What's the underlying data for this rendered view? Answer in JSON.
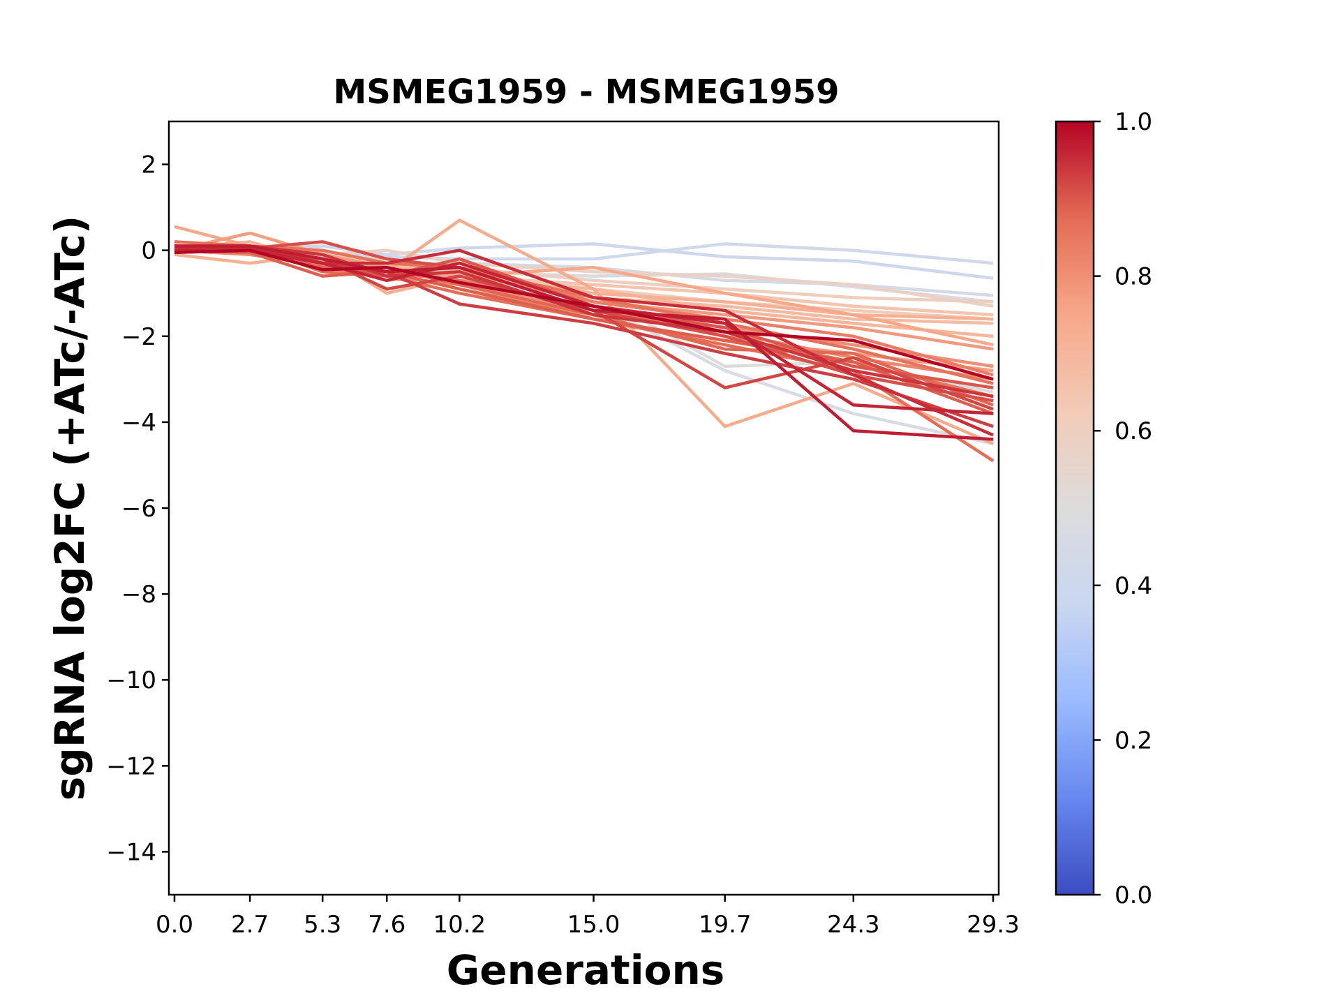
{
  "chart_data": {
    "type": "line",
    "title": "MSMEG1959 - MSMEG1959",
    "xlabel": "Generations",
    "ylabel": "sgRNA log2FC (+ATc/-ATc)",
    "x": [
      0.0,
      2.7,
      5.3,
      7.6,
      10.2,
      15.0,
      19.7,
      24.3,
      29.3
    ],
    "x_tick_labels": [
      "0.0",
      "2.7",
      "5.3",
      "7.6",
      "10.2",
      "15.0",
      "19.7",
      "24.3",
      "29.3"
    ],
    "xlim": [
      -0.2,
      29.5
    ],
    "ylim": [
      -15,
      3
    ],
    "y_ticks": [
      2,
      0,
      -2,
      -4,
      -6,
      -8,
      -10,
      -12,
      -14
    ],
    "y_tick_labels": [
      "2",
      "0",
      "−2",
      "−4",
      "−6",
      "−8",
      "−10",
      "−12",
      "−14"
    ],
    "grid": false,
    "colorbar": {
      "colormap": "coolwarm",
      "range": [
        0.0,
        1.0
      ],
      "tick_labels": [
        "0.0",
        "0.2",
        "0.4",
        "0.6",
        "0.8",
        "1.0"
      ],
      "stops": [
        "#3b4cc0",
        "#6788ee",
        "#9abbff",
        "#c9d7f0",
        "#dddcdc",
        "#f2cbb7",
        "#f7a889",
        "#e36c55",
        "#b40426"
      ]
    },
    "series": [
      {
        "color_value": 0.4,
        "values": [
          0.0,
          0.05,
          0.1,
          -0.1,
          0.05,
          0.15,
          -0.15,
          -0.25,
          -0.65
        ]
      },
      {
        "color_value": 0.42,
        "values": [
          0.0,
          0.0,
          -0.05,
          -0.15,
          -0.2,
          -0.2,
          0.15,
          0.0,
          -0.3
        ]
      },
      {
        "color_value": 0.44,
        "values": [
          0.0,
          -0.05,
          -0.15,
          -0.3,
          -0.3,
          -0.4,
          -0.7,
          -0.8,
          -1.05
        ]
      },
      {
        "color_value": 0.46,
        "values": [
          0.0,
          0.0,
          -0.2,
          -0.4,
          -0.5,
          -0.6,
          -0.55,
          -0.85,
          -1.2
        ]
      },
      {
        "color_value": 0.47,
        "values": [
          0.0,
          -0.1,
          -0.3,
          -0.45,
          -0.6,
          -1.2,
          -2.8,
          -3.8,
          -4.5
        ]
      },
      {
        "color_value": 0.5,
        "values": [
          0.0,
          0.05,
          -0.2,
          -0.3,
          -0.5,
          -1.0,
          -2.7,
          -2.6,
          -3.3
        ]
      },
      {
        "color_value": 0.58,
        "values": [
          0.0,
          0.1,
          -0.1,
          0.0,
          -0.3,
          -0.5,
          -0.6,
          -0.8,
          -1.3
        ]
      },
      {
        "color_value": 0.6,
        "values": [
          0.0,
          0.05,
          -0.15,
          -0.2,
          -0.4,
          -0.7,
          -0.9,
          -1.1,
          -1.2
        ]
      },
      {
        "color_value": 0.62,
        "values": [
          0.05,
          0.0,
          -0.2,
          -0.3,
          -0.5,
          -0.9,
          -1.2,
          -1.4,
          -1.6
        ]
      },
      {
        "color_value": 0.65,
        "values": [
          0.0,
          0.1,
          -0.1,
          -0.3,
          -0.6,
          -0.8,
          -1.0,
          -1.3,
          -1.5
        ]
      },
      {
        "color_value": 0.68,
        "values": [
          0.1,
          0.0,
          -0.25,
          -0.35,
          -0.45,
          -1.1,
          -1.3,
          -1.6,
          -1.7
        ]
      },
      {
        "color_value": 0.7,
        "values": [
          0.05,
          0.2,
          -0.3,
          -0.5,
          -0.7,
          -0.9,
          -1.4,
          -1.7,
          -2.0
        ]
      },
      {
        "color_value": 0.72,
        "values": [
          -0.1,
          -0.3,
          -0.1,
          -1.0,
          -0.6,
          -1.0,
          -1.2,
          -1.5,
          -1.6
        ]
      },
      {
        "color_value": 0.74,
        "values": [
          0.0,
          0.1,
          -0.3,
          -0.5,
          0.7,
          -0.9,
          -4.1,
          -3.1,
          -4.5
        ]
      },
      {
        "color_value": 0.75,
        "values": [
          0.55,
          0.1,
          -0.2,
          -0.4,
          -0.6,
          -0.4,
          -1.0,
          -1.5,
          -2.2
        ]
      },
      {
        "color_value": 0.77,
        "values": [
          0.0,
          0.4,
          -0.1,
          -0.4,
          -0.7,
          -1.6,
          -2.1,
          -2.4,
          -2.8
        ]
      },
      {
        "color_value": 0.78,
        "values": [
          0.0,
          0.0,
          -0.3,
          -0.7,
          -0.5,
          -1.2,
          -1.5,
          -1.8,
          -2.3
        ]
      },
      {
        "color_value": 0.8,
        "values": [
          0.1,
          0.1,
          -0.4,
          -0.6,
          -0.8,
          -1.4,
          -1.8,
          -2.2,
          -2.7
        ]
      },
      {
        "color_value": 0.82,
        "values": [
          0.0,
          -0.1,
          -0.35,
          -0.5,
          -0.9,
          -1.5,
          -1.9,
          -2.5,
          -3.0
        ]
      },
      {
        "color_value": 0.84,
        "values": [
          -0.05,
          0.0,
          -0.2,
          -0.6,
          -0.3,
          -1.2,
          -1.6,
          -2.0,
          -2.9
        ]
      },
      {
        "color_value": 0.85,
        "values": [
          0.1,
          0.05,
          -0.3,
          -0.5,
          -0.7,
          -1.3,
          -2.0,
          -2.6,
          -3.4
        ]
      },
      {
        "color_value": 0.86,
        "values": [
          0.0,
          0.1,
          0.0,
          -0.3,
          -0.4,
          -1.1,
          -1.7,
          -2.3,
          -3.1
        ]
      },
      {
        "color_value": 0.87,
        "values": [
          0.2,
          0.1,
          -0.5,
          -0.6,
          -1.0,
          -1.6,
          -2.2,
          -2.8,
          -4.9
        ]
      },
      {
        "color_value": 0.88,
        "values": [
          0.0,
          0.0,
          -0.4,
          -0.4,
          -0.8,
          -1.5,
          -2.3,
          -2.4,
          -3.6
        ]
      },
      {
        "color_value": 0.89,
        "values": [
          0.0,
          -0.05,
          -0.6,
          -0.5,
          -0.9,
          -1.6,
          -2.1,
          -2.6,
          -3.8
        ]
      },
      {
        "color_value": 0.9,
        "values": [
          0.1,
          0.1,
          -0.3,
          -0.6,
          -0.2,
          -1.3,
          -1.8,
          -2.7,
          -3.2
        ]
      },
      {
        "color_value": 0.91,
        "values": [
          0.0,
          0.05,
          0.2,
          -0.2,
          -0.4,
          -1.4,
          -2.0,
          -2.9,
          -3.5
        ]
      },
      {
        "color_value": 0.92,
        "values": [
          0.0,
          0.0,
          -0.2,
          -0.9,
          -0.6,
          -1.4,
          -3.2,
          -2.5,
          -3.7
        ]
      },
      {
        "color_value": 0.93,
        "values": [
          0.1,
          0.0,
          -0.3,
          -0.5,
          -1.25,
          -1.7,
          -2.4,
          -3.0,
          -4.1
        ]
      },
      {
        "color_value": 0.94,
        "values": [
          0.0,
          0.1,
          -0.1,
          -0.6,
          -0.5,
          -1.5,
          -1.9,
          -2.8,
          -3.4
        ]
      },
      {
        "color_value": 0.95,
        "values": [
          0.05,
          0.05,
          -0.3,
          -0.3,
          0.0,
          -1.1,
          -1.4,
          -2.9,
          -4.3
        ]
      },
      {
        "color_value": 0.96,
        "values": [
          0.0,
          0.0,
          -0.3,
          -0.7,
          -0.3,
          -1.3,
          -1.7,
          -3.6,
          -3.8
        ]
      },
      {
        "color_value": 0.97,
        "values": [
          0.1,
          0.1,
          -0.2,
          -0.5,
          -0.4,
          -1.4,
          -1.6,
          -4.2,
          -4.4
        ]
      },
      {
        "color_value": 1.0,
        "values": [
          -0.05,
          0.0,
          -0.45,
          -0.4,
          -0.75,
          -1.3,
          -1.9,
          -2.1,
          -3.0
        ]
      }
    ]
  }
}
